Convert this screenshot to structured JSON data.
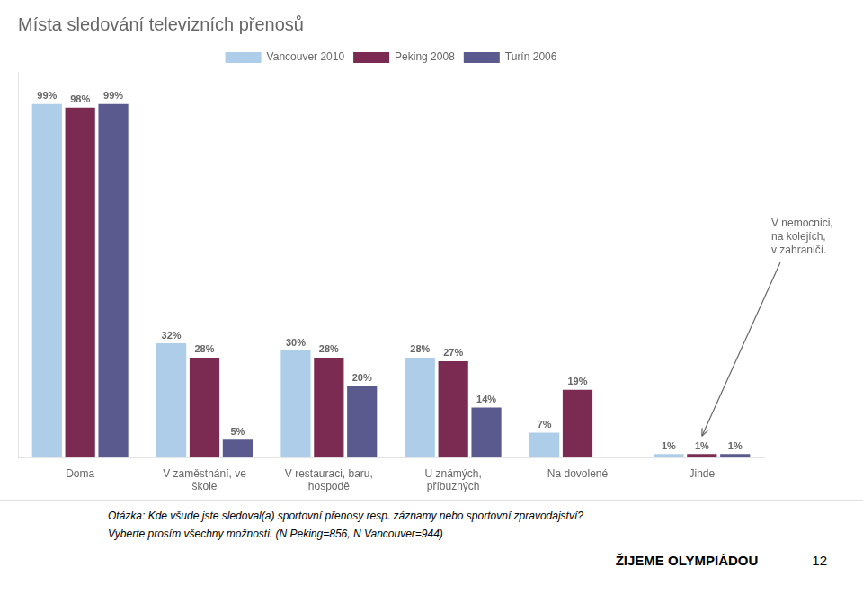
{
  "chart_data": {
    "type": "bar",
    "title": "Místa sledování televizních přenosů",
    "categories": [
      "Doma",
      "V zaměstnání, ve\nškole",
      "V restauraci, baru,\nhospodě",
      "U známých,\npříbuzných",
      "Na dovolené",
      "Jinde"
    ],
    "series": [
      {
        "name": "Vancouver 2010",
        "color": "#aecde8",
        "values": [
          99,
          32,
          30,
          28,
          7,
          1
        ],
        "value_labels": [
          "99%",
          "32%",
          "30%",
          "28%",
          "7%",
          "1%"
        ]
      },
      {
        "name": "Peking 2008",
        "color": "#7b2a52",
        "values": [
          98,
          28,
          28,
          27,
          19,
          1
        ],
        "value_labels": [
          "98%",
          "28%",
          "28%",
          "27%",
          "19%",
          "1%"
        ]
      },
      {
        "name": "Turín 2006",
        "color": "#5a5a8e",
        "values": [
          99,
          5,
          20,
          14,
          0,
          1
        ],
        "value_labels": [
          "99%",
          "5%",
          "20%",
          "14%",
          null,
          "1%"
        ]
      }
    ],
    "ylim": [
      0,
      108
    ],
    "tick_labels": "x",
    "grid": false,
    "legend": "top",
    "data_labels": true,
    "annotations": [
      {
        "text": "V nemocnici,\nna kolejích,\nv zahraničí.",
        "category": "Jinde"
      }
    ],
    "footnotes": [
      "Otázka: Kde všude jste sledoval(a) sportovní přenosy resp. záznamy nebo sportovní zpravodajství?",
      "Vyberte prosím všechny možnosti. (N Peking=856, N Vancouver=944)"
    ],
    "footer": [
      "ŽIJEME OLYMPIÁDOU",
      "12"
    ]
  }
}
